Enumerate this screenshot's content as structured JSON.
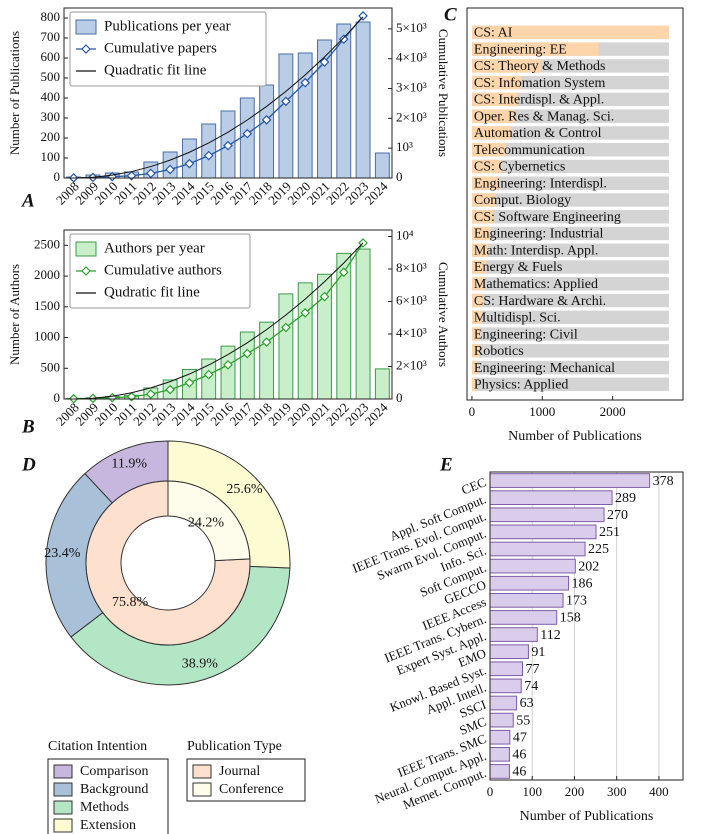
{
  "chart_data": [
    {
      "type": "barline",
      "panel": "A",
      "categories": [
        "2008",
        "2009",
        "2010",
        "2011",
        "2012",
        "2013",
        "2014",
        "2015",
        "2016",
        "2017",
        "2018",
        "2019",
        "2020",
        "2021",
        "2022",
        "2023",
        "2024"
      ],
      "ylabel": "Number of Publications",
      "y2label": "Cumulative Publications",
      "ylim": [
        0,
        850
      ],
      "yticks": [
        0,
        100,
        200,
        300,
        400,
        500,
        600,
        700,
        800
      ],
      "y2lim": [
        0,
        5700
      ],
      "y2ticks": [
        0,
        {
          "value": 1000,
          "label": "10³"
        },
        {
          "value": 2000,
          "label": "2×10³"
        },
        {
          "value": 3000,
          "label": "3×10³"
        },
        {
          "value": 4000,
          "label": "4×10³"
        },
        {
          "value": 5000,
          "label": "5×10³"
        }
      ],
      "legend": "upper left",
      "series": [
        {
          "name": "Publications per year",
          "type": "bar",
          "color": "#b9cde6",
          "edge_color": "#4a6fa5",
          "values": [
            5,
            15,
            25,
            30,
            80,
            130,
            195,
            270,
            335,
            400,
            465,
            620,
            625,
            690,
            770,
            780,
            125
          ]
        },
        {
          "name": "Cumulative papers",
          "type": "line",
          "marker": "diamond",
          "axis": "y2",
          "color": "#2557a7",
          "values": [
            5,
            20,
            45,
            75,
            155,
            285,
            480,
            750,
            1085,
            1485,
            1950,
            2570,
            3195,
            3885,
            4655,
            5435,
            null
          ]
        },
        {
          "name": "Quadratic fit line",
          "type": "line",
          "axis": "y2",
          "color": "#111111",
          "values": [
            0,
            24,
            96,
            216,
            384,
            600,
            864,
            1176,
            1536,
            1944,
            2400,
            2904,
            3456,
            4056,
            4704,
            5400,
            null
          ]
        }
      ]
    },
    {
      "type": "barline",
      "panel": "B",
      "categories": [
        "2008",
        "2009",
        "2010",
        "2011",
        "2012",
        "2013",
        "2014",
        "2015",
        "2016",
        "2017",
        "2018",
        "2019",
        "2020",
        "2021",
        "2022",
        "2023",
        "2024"
      ],
      "ylabel": "Number of Authors",
      "y2label": "Cumulative Authors",
      "ylim": [
        0,
        2750
      ],
      "yticks": [
        0,
        500,
        1000,
        1500,
        2000,
        2500
      ],
      "y2lim": [
        0,
        10400
      ],
      "y2ticks": [
        0,
        {
          "value": 2000,
          "label": "2×10³"
        },
        {
          "value": 4000,
          "label": "4×10³"
        },
        {
          "value": 6000,
          "label": "6×10³"
        },
        {
          "value": 8000,
          "label": "8×10³"
        },
        {
          "value": 10000,
          "label": "10⁴"
        }
      ],
      "legend": "upper left",
      "series": [
        {
          "name": "Authors per year",
          "type": "bar",
          "color": "#c8efc9",
          "edge_color": "#3b9a4b",
          "values": [
            10,
            20,
            40,
            60,
            180,
            310,
            480,
            650,
            860,
            1090,
            1250,
            1710,
            1890,
            2030,
            2370,
            2440,
            490
          ]
        },
        {
          "name": "Cumulative authors",
          "type": "line",
          "marker": "diamond",
          "axis": "y2",
          "color": "#2ca02c",
          "values": [
            20,
            40,
            80,
            140,
            300,
            580,
            1000,
            1500,
            2100,
            2800,
            3500,
            4400,
            5300,
            6300,
            7800,
            9600,
            null
          ]
        },
        {
          "name": "Qudratic fit line",
          "type": "line",
          "axis": "y2",
          "color": "#111111",
          "values": [
            0,
            43,
            171,
            384,
            683,
            1068,
            1537,
            2092,
            2733,
            3459,
            4270,
            5167,
            6149,
            7216,
            8369,
            9608,
            null
          ]
        }
      ]
    },
    {
      "type": "hbar",
      "panel": "C",
      "xlabel": "Number of Publications",
      "categories": [
        "CS: AI",
        "Engineering: EE",
        "CS: Theory & Methods",
        "CS: Infomation System",
        "CS: Interdispl. & Appl.",
        "Oper. Res & Manag. Sci.",
        "Automation & Control",
        "Telecommunication",
        "CS: Cybernetics",
        "Engineering: Interdispl.",
        "Comput. Biology",
        "CS: Software Engineering",
        "Engineering: Industrial",
        "Math: Interdisp. Appl.",
        "Energy & Fuels",
        "Mathematics: Applied",
        "CS: Hardware & Archi.",
        "Multidispl. Sci.",
        "Engineering: Civil",
        "Robotics",
        "Engineering: Mechanical",
        "Physics: Applied"
      ],
      "values": [
        2800,
        1800,
        980,
        700,
        650,
        600,
        560,
        480,
        420,
        380,
        340,
        300,
        260,
        230,
        200,
        180,
        160,
        140,
        120,
        100,
        80,
        60
      ],
      "color": "#fdd5ab",
      "background_color": "#d4d4d4",
      "category_labels": "inside",
      "xlim": [
        -70,
        3000
      ],
      "xticks": [
        0,
        1000,
        2000
      ]
    },
    {
      "type": "donut",
      "panel": "D",
      "counterclock": true,
      "rings": [
        {
          "title": "Citation Intention",
          "categories": [
            "Comparison",
            "Background",
            "Methods",
            "Extension"
          ],
          "values": [
            11.9,
            23.4,
            38.9,
            25.6
          ],
          "value_labels": [
            "11.9%",
            "23.4%",
            "38.9%",
            "25.6%"
          ],
          "colors": [
            "#c7b6dd",
            "#a9c0d9",
            "#b3e6c5",
            "#fdfbd2"
          ]
        },
        {
          "title": "Publication Type",
          "categories": [
            "Journal",
            "Conference"
          ],
          "values": [
            75.8,
            24.2
          ],
          "value_labels": [
            "75.8%",
            "24.2%"
          ],
          "colors": [
            "#fde0cd",
            "#fefcea"
          ]
        }
      ]
    },
    {
      "type": "hbar",
      "panel": "E",
      "xlabel": "Number of Publications",
      "categories": [
        "CEC",
        "Appl. Soft Comput.",
        "IEEE Trans. Evol. Comput.",
        "Swarm Evol. Comput.",
        "Info. Sci.",
        "Soft Comput.",
        "GECCO",
        "IEEE Access",
        "IEEE Trans. Cybern.",
        "Expert Syst. Appl.",
        "EMO",
        "Knowl. Based Syst.",
        "Appl. Intell.",
        "SSCI",
        "SMC",
        "IEEE Trans. SMC",
        "Neural. Comput. Appl.",
        "Memet. Comput."
      ],
      "values": [
        378,
        289,
        270,
        251,
        225,
        202,
        186,
        173,
        158,
        112,
        91,
        77,
        74,
        63,
        55,
        47,
        46,
        46
      ],
      "color": "#dacdeb",
      "edge_color": "#7d5ba6",
      "category_labels": "outside",
      "data_labels": true,
      "grid": true,
      "xlim": [
        0,
        457
      ],
      "xticks": [
        0,
        100,
        200,
        300,
        400
      ]
    }
  ]
}
